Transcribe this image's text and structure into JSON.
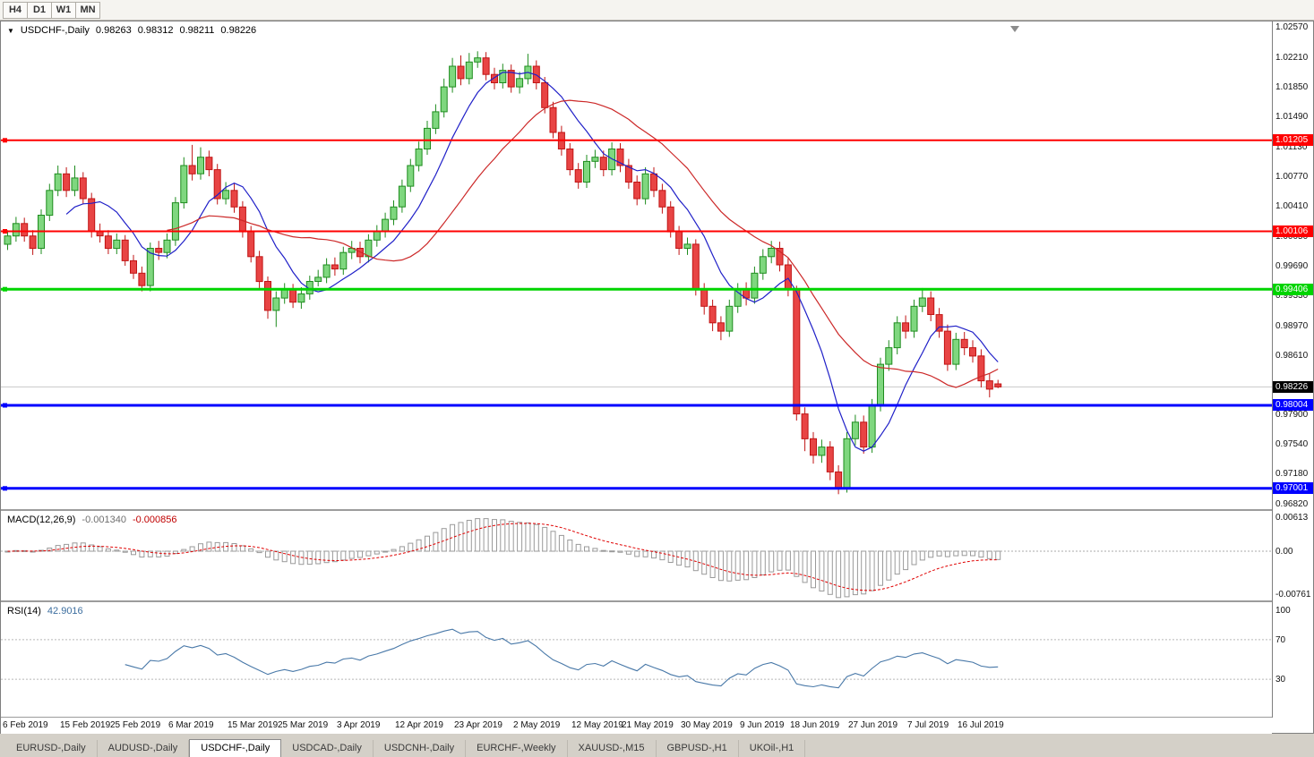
{
  "toolbar": {
    "periods": [
      {
        "label": "H4"
      },
      {
        "label": "D1"
      },
      {
        "label": "W1"
      },
      {
        "label": "MN"
      }
    ]
  },
  "window": {
    "title_symbol": "USDCHF-,Daily",
    "ohlc": {
      "open": "0.98263",
      "high": "0.98312",
      "low": "0.98211",
      "close": "0.98226"
    }
  },
  "colors": {
    "bull_fill": "#7FD77F",
    "bull_stroke": "#1E8C1E",
    "bear_fill": "#E84444",
    "bear_stroke": "#C01414",
    "ma_fast": "#2020C8",
    "ma_slow": "#CC2828",
    "macd_hist_stroke": "#9A9A9A",
    "macd_signal": "#E00000",
    "rsi_line": "#4878A8",
    "price_line": "#C8C8C8",
    "current_badge": "#000000"
  },
  "chart_data": {
    "type": "candlestick",
    "title": "USDCHF-,Daily",
    "price_scale": {
      "min": 0.9675,
      "max": 1.0264
    },
    "price_axis_labels": [
      "1.02570",
      "1.02210",
      "1.01850",
      "1.01490",
      "1.01130",
      "1.00770",
      "1.00410",
      "1.00050",
      "0.99690",
      "0.99330",
      "0.98970",
      "0.98610",
      "0.97900",
      "0.97540",
      "0.97180",
      "0.96820"
    ],
    "current_price": {
      "value": 0.98226,
      "label": "0.98226"
    },
    "hlines": [
      {
        "price": 1.01205,
        "label": "1.01205",
        "color": "#FF0000",
        "width": 2
      },
      {
        "price": 1.00106,
        "label": "1.00106",
        "color": "#FF0000",
        "width": 2
      },
      {
        "price": 0.99406,
        "label": "0.99406",
        "color": "#00D400",
        "width": 3
      },
      {
        "price": 0.98004,
        "label": "0.98004",
        "color": "#0000FF",
        "width": 3
      },
      {
        "price": 0.97001,
        "label": "0.97001",
        "color": "#0000FF",
        "width": 3
      }
    ],
    "date_ticks": [
      {
        "label": "6 Feb 2019",
        "bar": 0
      },
      {
        "label": "15 Feb 2019",
        "bar": 7
      },
      {
        "label": "25 Feb 2019",
        "bar": 13
      },
      {
        "label": "6 Mar 2019",
        "bar": 20
      },
      {
        "label": "15 Mar 2019",
        "bar": 27
      },
      {
        "label": "25 Mar 2019",
        "bar": 33
      },
      {
        "label": "3 Apr 2019",
        "bar": 40
      },
      {
        "label": "12 Apr 2019",
        "bar": 47
      },
      {
        "label": "23 Apr 2019",
        "bar": 54
      },
      {
        "label": "2 May 2019",
        "bar": 61
      },
      {
        "label": "12 May 2019",
        "bar": 68
      },
      {
        "label": "21 May 2019",
        "bar": 74
      },
      {
        "label": "30 May 2019",
        "bar": 81
      },
      {
        "label": "9 Jun 2019",
        "bar": 88
      },
      {
        "label": "18 Jun 2019",
        "bar": 94
      },
      {
        "label": "27 Jun 2019",
        "bar": 101
      },
      {
        "label": "7 Jul 2019",
        "bar": 108
      },
      {
        "label": "16 Jul 2019",
        "bar": 114
      }
    ],
    "macd": {
      "label": "MACD(12,26,9)",
      "main_value": "-0.001340",
      "signal_value": "-0.000856",
      "axis_labels": [
        "0.00613",
        "0.00",
        "-0.00761"
      ],
      "scale": {
        "min": -0.0088,
        "max": 0.0072
      }
    },
    "rsi": {
      "label": "RSI(14)",
      "value": "42.9016",
      "axis_labels": [
        "100",
        "70",
        "30"
      ],
      "levels": [
        70,
        30
      ],
      "scale": {
        "min": -8,
        "max": 108
      }
    },
    "candles": [
      [
        0.9995,
        1.0012,
        0.9988,
        1.0005
      ],
      [
        1.0005,
        1.0028,
        0.9998,
        1.002
      ],
      [
        1.002,
        1.0027,
        0.9998,
        1.0005
      ],
      [
        1.0005,
        1.0012,
        0.9982,
        0.999
      ],
      [
        0.999,
        1.0037,
        0.9983,
        1.003
      ],
      [
        1.003,
        1.0068,
        1.0023,
        1.006
      ],
      [
        1.006,
        1.009,
        1.0053,
        1.008
      ],
      [
        1.008,
        1.0088,
        1.0052,
        1.006
      ],
      [
        1.006,
        1.009,
        1.0053,
        1.0075
      ],
      [
        1.0075,
        1.0082,
        1.0043,
        1.005
      ],
      [
        1.005,
        1.0057,
        1.0003,
        1.001
      ],
      [
        1.001,
        1.002,
        0.9997,
        1.0005
      ],
      [
        1.0005,
        1.0012,
        0.9983,
        0.999
      ],
      [
        0.999,
        1.0008,
        0.9983,
        1.0
      ],
      [
        1.0,
        1.0006,
        0.9969,
        0.9975
      ],
      [
        0.9975,
        0.9982,
        0.9953,
        0.996
      ],
      [
        0.996,
        0.9968,
        0.9938,
        0.9945
      ],
      [
        0.9945,
        0.9997,
        0.9938,
        0.999
      ],
      [
        0.999,
        0.9999,
        0.9976,
        0.9985
      ],
      [
        0.9985,
        1.0008,
        0.9978,
        1.0
      ],
      [
        1.0,
        1.0052,
        0.9993,
        1.0045
      ],
      [
        1.0045,
        1.01,
        1.0038,
        1.009
      ],
      [
        1.009,
        1.0115,
        1.0072,
        1.008
      ],
      [
        1.008,
        1.0112,
        1.0073,
        1.01
      ],
      [
        1.01,
        1.0108,
        1.0077,
        1.0085
      ],
      [
        1.0085,
        1.0092,
        1.0043,
        1.005
      ],
      [
        1.005,
        1.007,
        1.0043,
        1.006
      ],
      [
        1.006,
        1.0068,
        1.0033,
        1.004
      ],
      [
        1.004,
        1.0047,
        1.0003,
        1.001
      ],
      [
        1.001,
        1.0017,
        0.9973,
        0.998
      ],
      [
        0.998,
        0.9987,
        0.9942,
        0.995
      ],
      [
        0.995,
        0.9956,
        0.9905,
        0.9915
      ],
      [
        0.9915,
        0.9938,
        0.9895,
        0.993
      ],
      [
        0.993,
        0.9948,
        0.9923,
        0.994
      ],
      [
        0.994,
        0.9947,
        0.9918,
        0.9925
      ],
      [
        0.9925,
        0.9943,
        0.9917,
        0.9935
      ],
      [
        0.9935,
        0.9957,
        0.9928,
        0.995
      ],
      [
        0.995,
        0.9964,
        0.9944,
        0.9955
      ],
      [
        0.9955,
        0.9978,
        0.9948,
        0.997
      ],
      [
        0.997,
        0.9979,
        0.9957,
        0.9965
      ],
      [
        0.9965,
        0.9992,
        0.9958,
        0.9985
      ],
      [
        0.9985,
        0.9999,
        0.9977,
        0.999
      ],
      [
        0.999,
        0.9998,
        0.9972,
        0.998
      ],
      [
        0.998,
        1.0007,
        0.9973,
        1.0
      ],
      [
        1.0,
        1.0018,
        0.9992,
        1.001
      ],
      [
        1.001,
        1.0033,
        1.0003,
        1.0025
      ],
      [
        1.0025,
        1.0048,
        1.0018,
        1.004
      ],
      [
        1.004,
        1.0073,
        1.0033,
        1.0065
      ],
      [
        1.0065,
        1.0098,
        1.0058,
        1.009
      ],
      [
        1.009,
        1.0119,
        1.0083,
        1.011
      ],
      [
        1.011,
        1.0144,
        1.0103,
        1.0135
      ],
      [
        1.0135,
        1.0164,
        1.0128,
        1.0155
      ],
      [
        1.0155,
        1.0195,
        1.0148,
        1.0185
      ],
      [
        1.0185,
        1.022,
        1.0178,
        1.021
      ],
      [
        1.021,
        1.0223,
        1.0187,
        1.0195
      ],
      [
        1.0195,
        1.0226,
        1.0188,
        1.0215
      ],
      [
        1.0215,
        1.0228,
        1.0208,
        1.022
      ],
      [
        1.022,
        1.0227,
        1.0193,
        1.02
      ],
      [
        1.02,
        1.0208,
        1.0182,
        1.019
      ],
      [
        1.019,
        1.0213,
        1.0183,
        1.0205
      ],
      [
        1.0205,
        1.0212,
        1.0178,
        1.0185
      ],
      [
        1.0185,
        1.0203,
        1.0177,
        1.0195
      ],
      [
        1.0195,
        1.0225,
        1.0188,
        1.021
      ],
      [
        1.021,
        1.0217,
        1.0182,
        1.019
      ],
      [
        1.019,
        1.0197,
        1.0153,
        1.016
      ],
      [
        1.016,
        1.0167,
        1.0123,
        1.013
      ],
      [
        1.013,
        1.0138,
        1.0102,
        1.011
      ],
      [
        1.011,
        1.0117,
        1.0078,
        1.0085
      ],
      [
        1.0085,
        1.0093,
        1.0062,
        1.007
      ],
      [
        1.007,
        1.0103,
        1.0063,
        1.0095
      ],
      [
        1.0095,
        1.0109,
        1.0087,
        1.01
      ],
      [
        1.01,
        1.0108,
        1.0077,
        1.0085
      ],
      [
        1.0085,
        1.0118,
        1.0078,
        1.011
      ],
      [
        1.011,
        1.0117,
        1.0082,
        1.009
      ],
      [
        1.009,
        1.0098,
        1.0062,
        1.007
      ],
      [
        1.007,
        1.0078,
        1.0042,
        1.005
      ],
      [
        1.005,
        1.0088,
        1.0043,
        1.008
      ],
      [
        1.008,
        1.0088,
        1.0052,
        1.006
      ],
      [
        1.006,
        1.0068,
        1.0032,
        1.004
      ],
      [
        1.004,
        1.0047,
        1.0003,
        1.001
      ],
      [
        1.001,
        1.0017,
        0.9982,
        0.999
      ],
      [
        0.999,
        1.0003,
        0.9982,
        0.9995
      ],
      [
        0.9995,
        1.0001,
        0.9933,
        0.994
      ],
      [
        0.994,
        0.9948,
        0.991,
        0.992
      ],
      [
        0.992,
        0.9928,
        0.989,
        0.99
      ],
      [
        0.99,
        0.9908,
        0.9879,
        0.989
      ],
      [
        0.989,
        0.9928,
        0.9883,
        0.992
      ],
      [
        0.992,
        0.9948,
        0.9912,
        0.994
      ],
      [
        0.994,
        0.9949,
        0.9921,
        0.993
      ],
      [
        0.993,
        0.9968,
        0.9923,
        0.996
      ],
      [
        0.996,
        0.9989,
        0.9952,
        0.998
      ],
      [
        0.998,
        0.9999,
        0.9972,
        0.999
      ],
      [
        0.999,
        0.9998,
        0.9962,
        0.997
      ],
      [
        0.997,
        0.9978,
        0.9932,
        0.994
      ],
      [
        0.994,
        0.9945,
        0.9782,
        0.979
      ],
      [
        0.979,
        0.9798,
        0.9745,
        0.976
      ],
      [
        0.976,
        0.9768,
        0.973,
        0.974
      ],
      [
        0.974,
        0.9759,
        0.9731,
        0.975
      ],
      [
        0.975,
        0.9757,
        0.971,
        0.972
      ],
      [
        0.972,
        0.9728,
        0.9693,
        0.97
      ],
      [
        0.97,
        0.9768,
        0.9695,
        0.976
      ],
      [
        0.976,
        0.9789,
        0.9752,
        0.978
      ],
      [
        0.978,
        0.9788,
        0.9742,
        0.975
      ],
      [
        0.975,
        0.9808,
        0.9743,
        0.98
      ],
      [
        0.98,
        0.9858,
        0.9793,
        0.985
      ],
      [
        0.985,
        0.9879,
        0.9842,
        0.987
      ],
      [
        0.987,
        0.9908,
        0.9862,
        0.99
      ],
      [
        0.99,
        0.9909,
        0.9881,
        0.989
      ],
      [
        0.989,
        0.9928,
        0.9882,
        0.992
      ],
      [
        0.992,
        0.9942,
        0.9913,
        0.993
      ],
      [
        0.993,
        0.9938,
        0.9902,
        0.991
      ],
      [
        0.991,
        0.9918,
        0.9882,
        0.989
      ],
      [
        0.989,
        0.9898,
        0.9842,
        0.985
      ],
      [
        0.985,
        0.9888,
        0.9843,
        0.988
      ],
      [
        0.988,
        0.9889,
        0.9861,
        0.987
      ],
      [
        0.987,
        0.9879,
        0.9852,
        0.986
      ],
      [
        0.986,
        0.9868,
        0.9822,
        0.983
      ],
      [
        0.983,
        0.9839,
        0.981,
        0.982
      ],
      [
        0.98263,
        0.98312,
        0.98211,
        0.98226
      ]
    ]
  },
  "tabs": [
    {
      "label": "EURUSD-,Daily",
      "active": false
    },
    {
      "label": "AUDUSD-,Daily",
      "active": false
    },
    {
      "label": "USDCHF-,Daily",
      "active": true
    },
    {
      "label": "USDCAD-,Daily",
      "active": false
    },
    {
      "label": "USDCNH-,Daily",
      "active": false
    },
    {
      "label": "EURCHF-,Weekly",
      "active": false
    },
    {
      "label": "XAUUSD-,M15",
      "active": false
    },
    {
      "label": "GBPUSD-,H1",
      "active": false
    },
    {
      "label": "UKOil-,H1",
      "active": false
    }
  ]
}
